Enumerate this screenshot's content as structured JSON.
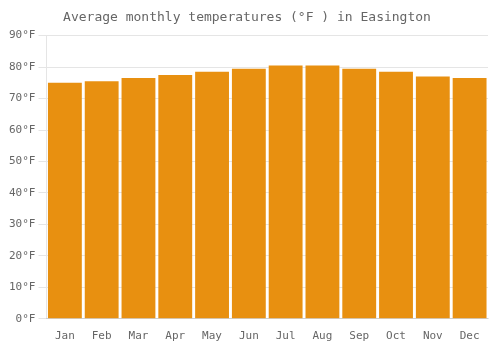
{
  "chart_data": {
    "type": "bar",
    "title": "Average monthly temperatures (°F ) in Easington",
    "categories": [
      "Jan",
      "Feb",
      "Mar",
      "Apr",
      "May",
      "Jun",
      "Jul",
      "Aug",
      "Sep",
      "Oct",
      "Nov",
      "Dec"
    ],
    "values": [
      75,
      75.5,
      76.5,
      77.5,
      78.5,
      79.5,
      80.5,
      80.5,
      79.5,
      78.5,
      77,
      76.5
    ],
    "color": "#E89010",
    "ylim": [
      0,
      90
    ],
    "yticks": [
      {
        "value": 0,
        "label": "0°F"
      },
      {
        "value": 10,
        "label": "10°F"
      },
      {
        "value": 20,
        "label": "20°F"
      },
      {
        "value": 30,
        "label": "30°F"
      },
      {
        "value": 40,
        "label": "40°F"
      },
      {
        "value": 50,
        "label": "50°F"
      },
      {
        "value": 60,
        "label": "60°F"
      },
      {
        "value": 70,
        "label": "70°F"
      },
      {
        "value": 80,
        "label": "80°F"
      },
      {
        "value": 90,
        "label": "90°F"
      }
    ],
    "grid": true
  }
}
